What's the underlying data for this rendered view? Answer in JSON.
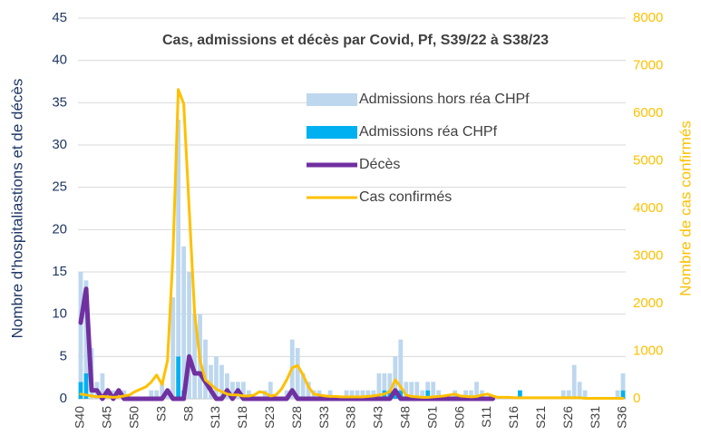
{
  "chart_data": {
    "type": "bar",
    "title": "Cas, admissions et décès par Covid, Pf, S39/22 à S38/23",
    "y_label": "Nombre d'hospitaliastions et de décès",
    "y2_label": "Nombre de cas confirmés",
    "categories": [
      "S40",
      null,
      null,
      null,
      null,
      "S45",
      null,
      null,
      null,
      null,
      "S50",
      null,
      null,
      null,
      null,
      "S3",
      null,
      null,
      null,
      null,
      "S8",
      null,
      null,
      null,
      null,
      "S13",
      null,
      null,
      null,
      null,
      "S18",
      null,
      null,
      null,
      null,
      "S23",
      null,
      null,
      null,
      null,
      "S28",
      null,
      null,
      null,
      null,
      "S33",
      null,
      null,
      null,
      null,
      "S38",
      null,
      null,
      null,
      null,
      "S43",
      null,
      null,
      null,
      null,
      "S48",
      null,
      null,
      null,
      null,
      "S01",
      null,
      null,
      null,
      null,
      "S06",
      null,
      null,
      null,
      null,
      "S11",
      null,
      null,
      null,
      null,
      "S16",
      null,
      null,
      null,
      null,
      "S21",
      null,
      null,
      null,
      null,
      "S26",
      null,
      null,
      null,
      null,
      "S31",
      null,
      null,
      null,
      null,
      "S36"
    ],
    "series": [
      {
        "name": "Admissions hors réa CHPf",
        "type": "bar",
        "color": "#bdd7ee",
        "values": [
          13,
          11,
          6,
          2,
          3,
          1,
          1,
          0,
          1,
          0,
          0,
          0,
          0,
          1,
          1,
          2,
          1,
          12,
          28,
          17,
          15,
          10,
          10,
          7,
          4,
          5,
          4,
          3,
          2,
          2,
          2,
          1,
          0,
          0,
          1,
          2,
          0,
          0,
          1,
          7,
          6,
          3,
          2,
          1,
          1,
          0,
          1,
          0,
          0,
          1,
          1,
          1,
          1,
          1,
          1,
          3,
          2,
          2,
          4,
          6,
          2,
          2,
          2,
          1,
          1,
          2,
          1,
          0,
          0,
          1,
          0,
          1,
          1,
          2,
          1,
          0,
          0,
          0,
          0,
          0,
          0,
          0,
          0,
          0,
          0,
          0,
          0,
          0,
          0,
          1,
          1,
          4,
          2,
          1,
          0,
          0,
          0,
          0,
          0,
          1,
          2
        ]
      },
      {
        "name": "Admissions réa CHPf",
        "type": "bar",
        "color": "#00b0f0",
        "values": [
          2,
          3,
          0,
          0,
          0,
          0,
          0,
          0,
          0,
          0,
          0,
          0,
          0,
          0,
          0,
          0,
          0,
          0,
          5,
          1,
          0,
          0,
          0,
          0,
          0,
          0,
          0,
          0,
          0,
          0,
          0,
          0,
          0,
          0,
          0,
          0,
          0,
          0,
          0,
          0,
          0,
          0,
          0,
          0,
          0,
          0,
          0,
          0,
          0,
          0,
          0,
          0,
          0,
          0,
          0,
          0,
          1,
          1,
          1,
          1,
          0,
          0,
          0,
          0,
          1,
          0,
          0,
          0,
          0,
          0,
          0,
          0,
          0,
          0,
          0,
          0,
          0,
          0,
          0,
          0,
          0,
          1,
          0,
          0,
          0,
          0,
          0,
          0,
          0,
          0,
          0,
          0,
          0,
          0,
          0,
          0,
          0,
          0,
          0,
          0,
          1
        ]
      },
      {
        "name": "Décès",
        "type": "line",
        "color": "#7030a0",
        "width": 5,
        "values": [
          9,
          13,
          1,
          1,
          0,
          1,
          0,
          1,
          0,
          0,
          0,
          0,
          0,
          0,
          0,
          0,
          1,
          0,
          0,
          0,
          5,
          3,
          3,
          2,
          1,
          0,
          0,
          1,
          0,
          1,
          0,
          0,
          0,
          0,
          0,
          0,
          0,
          0,
          0,
          1,
          0,
          0,
          0,
          0,
          0,
          0,
          0,
          0,
          0,
          0,
          0,
          0,
          0,
          0,
          0,
          0,
          0,
          0,
          1,
          0,
          0,
          0,
          0,
          0,
          0,
          0,
          0,
          0,
          0,
          0,
          0,
          0,
          0,
          0,
          0,
          0,
          0,
          null,
          null,
          null,
          null,
          null,
          null,
          null,
          null,
          null,
          null,
          null,
          null,
          null,
          null,
          null,
          null,
          null,
          null,
          null,
          null,
          null,
          null,
          null,
          null
        ]
      },
      {
        "name": "Cas confirmés",
        "type": "line",
        "axis": "y2",
        "color": "#ffc000",
        "width": 3,
        "values": [
          100,
          80,
          60,
          40,
          50,
          40,
          30,
          40,
          60,
          80,
          150,
          200,
          250,
          350,
          500,
          300,
          800,
          3000,
          6500,
          6200,
          4000,
          1800,
          800,
          400,
          300,
          200,
          150,
          100,
          80,
          80,
          60,
          60,
          80,
          150,
          120,
          60,
          80,
          200,
          400,
          650,
          700,
          500,
          250,
          100,
          80,
          60,
          50,
          50,
          40,
          40,
          40,
          40,
          40,
          50,
          60,
          80,
          100,
          150,
          400,
          250,
          80,
          50,
          40,
          30,
          30,
          40,
          50,
          60,
          80,
          100,
          60,
          50,
          40,
          50,
          80,
          100,
          60,
          30,
          30,
          30,
          20,
          20,
          20,
          20,
          20,
          20,
          20,
          20,
          20,
          20,
          20,
          20,
          20,
          10,
          10,
          10,
          10,
          10,
          10,
          10,
          10
        ]
      }
    ],
    "ylim": [
      0,
      45
    ],
    "yticks": [
      0,
      5,
      10,
      15,
      20,
      25,
      30,
      35,
      40,
      45
    ],
    "y2lim": [
      0,
      8000
    ],
    "y2ticks": [
      0,
      1000,
      2000,
      3000,
      4000,
      5000,
      6000,
      7000,
      8000
    ],
    "grid": true
  }
}
